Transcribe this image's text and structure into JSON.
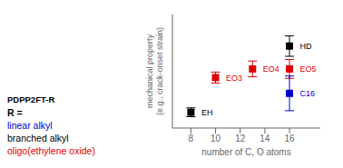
{
  "chart_data": {
    "type": "scatter",
    "xlabel": "number of C, O atoms",
    "ylabel": "mechanical property\n(e.g., crack-onset strain)",
    "xlim": [
      6.5,
      18.5
    ],
    "ylim": [
      0,
      7.2
    ],
    "xticks": [
      8,
      10,
      12,
      14,
      16
    ],
    "tick_labels": "x",
    "marker": "square",
    "series": [
      {
        "name": "EH",
        "color": "#000000",
        "x": [
          8
        ],
        "values": [
          1.0
        ],
        "yerr": [
          0.28
        ]
      },
      {
        "name": "EO3",
        "color": "#dd0000",
        "x": [
          10
        ],
        "values": [
          3.2
        ],
        "yerr": [
          0.35
        ]
      },
      {
        "name": "EO4",
        "color": "#dd0000",
        "x": [
          13
        ],
        "values": [
          3.75
        ],
        "yerr": [
          0.5
        ]
      },
      {
        "name": "EO5",
        "color": "#dd0000",
        "x": [
          16
        ],
        "values": [
          3.75
        ],
        "yerr": [
          0.6
        ]
      },
      {
        "name": "HD",
        "color": "#000000",
        "x": [
          16
        ],
        "values": [
          5.2
        ],
        "yerr": [
          0.65
        ]
      },
      {
        "name": "C16",
        "color": "#0000cc",
        "x": [
          16
        ],
        "values": [
          2.2
        ],
        "yerr": [
          1.1
        ]
      }
    ],
    "annotations": [
      {
        "text": "PDPP2FT-R",
        "color": "#000000"
      },
      {
        "text": "R =",
        "color": "#000000"
      },
      {
        "text": "linear alkyl",
        "color": "#0000cc"
      },
      {
        "text": "branched alkyl",
        "color": "#000000"
      },
      {
        "text": "oligo(ethylene oxide)",
        "color": "#dd0000"
      }
    ]
  }
}
